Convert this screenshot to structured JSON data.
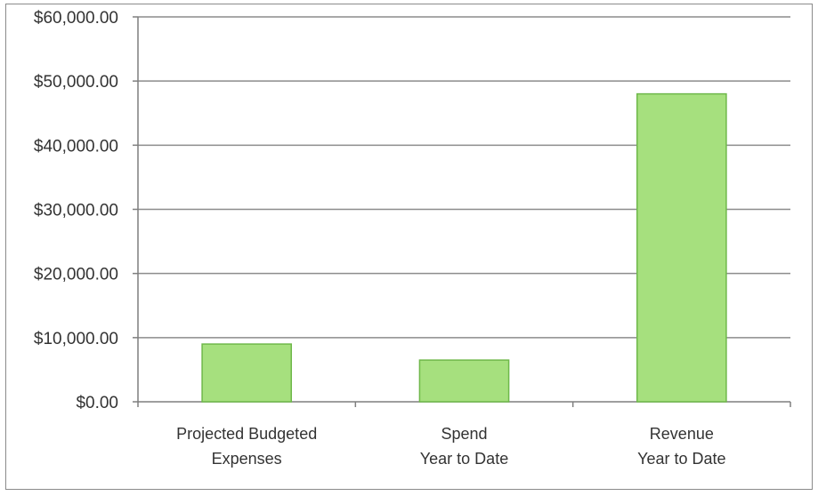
{
  "chart_data": {
    "type": "bar",
    "categories": [
      [
        "Projected Budgeted",
        "Expenses"
      ],
      [
        "Spend",
        "Year to Date"
      ],
      [
        "Revenue",
        "Year to Date"
      ]
    ],
    "values": [
      9000,
      6500,
      48000
    ],
    "ylim": [
      0,
      60000
    ],
    "yticks": [
      0,
      10000,
      20000,
      30000,
      40000,
      50000,
      60000
    ],
    "ytick_labels": [
      "$0.00",
      "$10,000.00",
      "$20,000.00",
      "$30,000.00",
      "$40,000.00",
      "$50,000.00",
      "$60,000.00"
    ],
    "grid": true,
    "legend": "none",
    "title": "",
    "xlabel": "",
    "ylabel": "",
    "colors": {
      "bar_fill": "#a6e07e",
      "bar_stroke": "#6fb84a",
      "grid": "#8c8c8c",
      "axis": "#7f7f7f"
    }
  }
}
